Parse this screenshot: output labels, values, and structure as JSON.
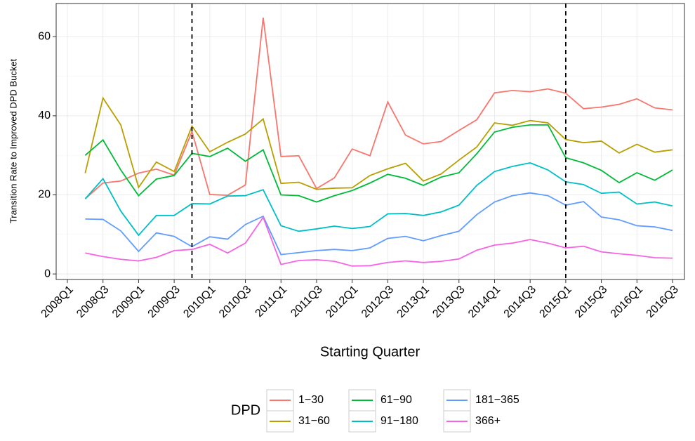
{
  "chart_data": {
    "type": "line",
    "xlabel": "Starting Quarter",
    "ylabel": "Transition Rate to Improved DPD Bucket",
    "categories": [
      "2008Q1",
      null,
      "2008Q3",
      null,
      "2009Q1",
      null,
      "2009Q3",
      null,
      "2010Q1",
      null,
      "2010Q3",
      null,
      "2011Q1",
      null,
      "2011Q3",
      null,
      "2012Q1",
      null,
      "2012Q3",
      null,
      "2013Q1",
      null,
      "2013Q3",
      null,
      "2014Q1",
      null,
      "2014Q3",
      null,
      "2015Q1",
      null,
      "2015Q3",
      null,
      "2016Q1",
      null,
      "2016Q3"
    ],
    "series": [
      {
        "name": "1−30",
        "color": "#f8766d",
        "values": [
          null,
          19.0,
          23.0,
          23.5,
          25.5,
          26.5,
          25.0,
          36.0,
          20.1,
          19.9,
          22.5,
          64.8,
          29.7,
          29.9,
          21.6,
          24.3,
          31.6,
          29.9,
          43.5,
          35.1,
          32.9,
          33.5,
          36.3,
          39.0,
          45.8,
          46.4,
          46.1,
          46.8,
          45.7,
          41.8,
          42.2,
          42.9,
          44.3,
          42.0,
          41.5
        ]
      },
      {
        "name": "31−60",
        "color": "#b79f00",
        "values": [
          null,
          25.5,
          44.5,
          37.7,
          21.9,
          28.3,
          25.9,
          37.4,
          30.9,
          33.3,
          35.4,
          39.2,
          22.9,
          23.2,
          21.4,
          21.7,
          21.8,
          24.9,
          26.6,
          28.0,
          23.5,
          25.3,
          28.8,
          32.1,
          38.2,
          37.6,
          38.8,
          38.2,
          34.0,
          33.2,
          33.6,
          30.6,
          32.8,
          30.8,
          31.4
        ]
      },
      {
        "name": "61−90",
        "color": "#00ba38",
        "values": [
          null,
          30.0,
          33.9,
          26.3,
          19.8,
          24.0,
          24.9,
          30.5,
          29.7,
          31.8,
          28.5,
          31.4,
          20.0,
          19.8,
          18.2,
          19.8,
          21.1,
          23.0,
          25.2,
          24.2,
          22.4,
          24.5,
          25.6,
          30.4,
          35.9,
          37.1,
          37.7,
          37.7,
          29.4,
          28.1,
          26.2,
          23.1,
          25.6,
          23.7,
          26.3
        ]
      },
      {
        "name": "91−180",
        "color": "#00bfc4",
        "values": [
          null,
          19.0,
          24.1,
          15.9,
          9.8,
          14.8,
          14.8,
          17.8,
          17.7,
          19.7,
          19.8,
          21.3,
          12.2,
          10.8,
          11.4,
          12.1,
          11.5,
          12.0,
          15.2,
          15.3,
          14.8,
          15.7,
          17.4,
          22.4,
          25.9,
          27.2,
          28.1,
          26.3,
          23.3,
          22.6,
          20.4,
          20.7,
          17.7,
          18.2,
          17.2
        ]
      },
      {
        "name": "181−365",
        "color": "#619cff",
        "values": [
          null,
          13.9,
          13.8,
          10.9,
          5.7,
          10.4,
          9.5,
          6.9,
          9.4,
          8.8,
          12.5,
          14.6,
          4.9,
          5.4,
          5.9,
          6.2,
          5.9,
          6.6,
          9.0,
          9.5,
          8.4,
          9.7,
          10.8,
          15.0,
          18.2,
          19.8,
          20.5,
          19.8,
          17.4,
          18.3,
          14.4,
          13.7,
          12.2,
          11.9,
          11.0
        ]
      },
      {
        "name": "366+",
        "color": "#f564e3",
        "values": [
          null,
          5.3,
          4.4,
          3.7,
          3.3,
          4.2,
          5.9,
          6.2,
          7.5,
          5.3,
          7.8,
          14.3,
          2.4,
          3.4,
          3.6,
          3.2,
          2.0,
          2.1,
          2.9,
          3.3,
          2.9,
          3.2,
          3.8,
          6.0,
          7.3,
          7.8,
          8.7,
          7.8,
          6.6,
          7.0,
          5.6,
          5.1,
          4.7,
          4.1,
          4.0
        ]
      }
    ],
    "vlines": [
      7,
      28
    ],
    "ylim": [
      -1.4,
      68.4
    ],
    "yticks": [
      0,
      20,
      40,
      60
    ],
    "grid": true,
    "legend_title": "DPD",
    "legend_position": "bottom"
  }
}
